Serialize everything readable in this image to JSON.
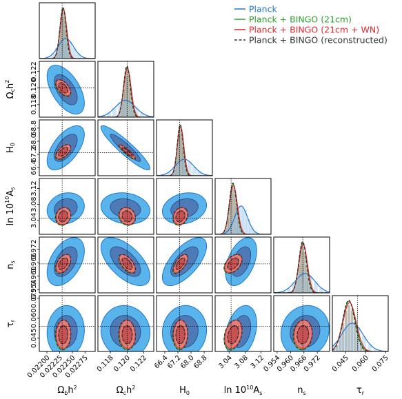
{
  "chart_data": {
    "type": "triangle-corner",
    "colors": {
      "Planck": "#1f77d4",
      "Planck + BINGO (21cm)": "#2ca02c",
      "Planck + BINGO (21cm + WN)": "#e3262b",
      "Planck + BINGO (reconstructed)": "#333333"
    },
    "legend": [
      {
        "key": "Planck",
        "label": "Planck",
        "color": "#1f77d4",
        "style": "solid"
      },
      {
        "key": "B21",
        "label": "Planck + BINGO (21cm)",
        "color": "#2ca02c",
        "style": "solid"
      },
      {
        "key": "BWN",
        "label": "Planck + BINGO (21cm + WN)",
        "color": "#e3262b",
        "style": "solid"
      },
      {
        "key": "REC",
        "label": "Planck + BINGO (reconstructed)",
        "color": "#333333",
        "style": "dashed"
      }
    ],
    "legend_position": "top-right",
    "parameters": [
      {
        "key": "obh2",
        "xlabel": "Ω_b h²",
        "ticks": [
          "0.02200",
          "0.02225",
          "0.02250",
          "0.02275"
        ],
        "tick_values": [
          0.022,
          0.02225,
          0.0225,
          0.02275
        ],
        "range": [
          0.02185,
          0.02295
        ],
        "truth": 0.0223,
        "mean_planck": 0.02237,
        "sd_planck": 0.00015,
        "mean_bingo": 0.02232,
        "sd_bingo": 6e-05
      },
      {
        "key": "och2",
        "xlabel": "Ω_c h²",
        "ylabel": "Ω_c h²",
        "ticks": [
          "0.118",
          "0.120",
          "0.122"
        ],
        "tick_values": [
          0.118,
          0.12,
          0.122
        ],
        "range": [
          0.1165,
          0.1232
        ],
        "truth": 0.12,
        "mean_planck": 0.1198,
        "sd_planck": 0.0012,
        "mean_bingo": 0.12,
        "sd_bingo": 0.0004
      },
      {
        "key": "H0",
        "xlabel": "H_0",
        "ylabel": "H_0",
        "ticks": [
          "66.4",
          "67.2",
          "68.0",
          "68.8"
        ],
        "tick_values": [
          66.4,
          67.2,
          68.0,
          68.8
        ],
        "range": [
          65.9,
          69.3
        ],
        "truth": 67.3,
        "mean_planck": 67.6,
        "sd_planck": 0.55,
        "mean_bingo": 67.35,
        "sd_bingo": 0.18
      },
      {
        "key": "lnAs",
        "xlabel": "ln 10¹⁰A_s",
        "ylabel": "ln 10¹⁰A_s",
        "ticks": [
          "3.04",
          "3.08",
          "3.12"
        ],
        "tick_values": [
          3.04,
          3.08,
          3.12
        ],
        "range": [
          3.005,
          3.145
        ],
        "truth": 3.045,
        "mean_planck": 3.07,
        "sd_planck": 0.016,
        "mean_bingo": 3.05,
        "sd_bingo": 0.009
      },
      {
        "key": "ns",
        "xlabel": "n_s",
        "ylabel": "n_s",
        "ticks": [
          "0.954",
          "0.960",
          "0.966",
          "0.972"
        ],
        "tick_values": [
          0.954,
          0.96,
          0.966,
          0.972
        ],
        "range": [
          0.9525,
          0.9775
        ],
        "truth": 0.9655,
        "mean_planck": 0.9665,
        "sd_planck": 0.0044,
        "mean_bingo": 0.9655,
        "sd_bingo": 0.0017
      },
      {
        "key": "tau",
        "xlabel": "τ_r",
        "ylabel": "τ_r",
        "ticks": [
          "0.045",
          "0.060",
          "0.075"
        ],
        "tick_values": [
          0.045,
          0.06,
          0.075
        ],
        "range": [
          0.035,
          0.077
        ],
        "truth": 0.054,
        "mean_planck": 0.05,
        "sd_planck": 0.008,
        "mean_bingo": 0.0475,
        "sd_bingo": 0.0045
      }
    ],
    "correlations": {
      "och2|obh2": -0.55,
      "H0|obh2": 0.6,
      "H0|och2": -0.92,
      "lnAs|obh2": 0.15,
      "lnAs|och2": -0.15,
      "lnAs|H0": 0.2,
      "ns|obh2": 0.45,
      "ns|och2": -0.6,
      "ns|H0": 0.65,
      "ns|lnAs": 0.45,
      "tau|obh2": 0.05,
      "tau|och2": -0.05,
      "tau|H0": 0.05,
      "tau|lnAs": 0.3,
      "tau|ns": 0.1
    },
    "contour_levels": [
      "68%",
      "95%"
    ],
    "grid": false
  },
  "labels": {
    "y": [
      "Ω",
      "c",
      "h",
      "2",
      "H",
      "0",
      "ln 10",
      "10",
      "A",
      "s",
      "n",
      "s",
      "τ",
      "r"
    ],
    "x": [
      "Ω",
      "b",
      "h",
      "2",
      "Ω",
      "c",
      "h",
      "2",
      "H",
      "0",
      "ln 10",
      "10",
      "A",
      "s",
      "n",
      "s",
      "τ",
      "r"
    ]
  }
}
